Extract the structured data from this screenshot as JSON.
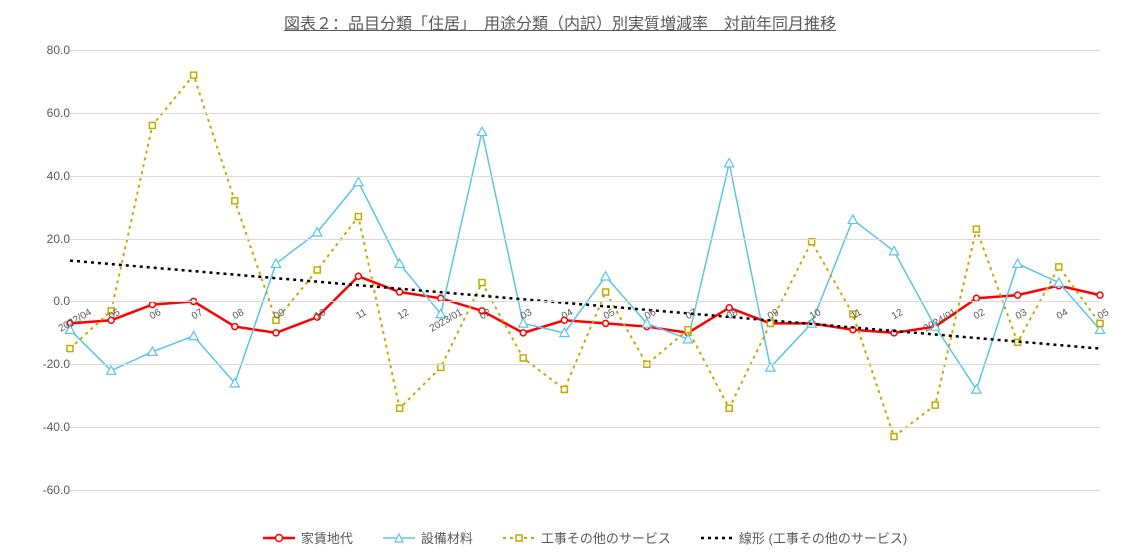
{
  "title": "図表２：品目分類「住居」　用途分類（内訳）別実質増減率　対前年同月推移",
  "chart": {
    "type": "line",
    "ylim": [
      -60,
      80
    ],
    "ytick_step": 20,
    "background_color": "#ffffff",
    "grid_color": "#d9d9d9",
    "title_fontsize": 16,
    "label_fontsize": 12,
    "x_labels": [
      "2022/04",
      "05",
      "06",
      "07",
      "08",
      "09",
      "10",
      "11",
      "12",
      "2023/01",
      "02",
      "03",
      "04",
      "05",
      "06",
      "07",
      "08",
      "09",
      "10",
      "11",
      "12",
      "2024/01",
      "02",
      "03",
      "04",
      "05"
    ],
    "series": [
      {
        "name": "家賃地代",
        "label": "家賃地代",
        "color": "#ff0000",
        "line_width": 2.5,
        "marker": "circle-open",
        "marker_size": 6,
        "dash": "solid",
        "values": [
          -7,
          -6,
          -1,
          0,
          -8,
          -10,
          -5,
          8,
          3,
          1,
          -3,
          -10,
          -6,
          -7,
          -8,
          -10,
          -2,
          -7,
          -7,
          -9,
          -10,
          -8,
          1,
          2,
          5,
          2
        ]
      },
      {
        "name": "設備材料",
        "label": "設備材料",
        "color": "#5bc5e8",
        "line_width": 1.5,
        "marker": "triangle-open",
        "marker_size": 7,
        "dash": "solid",
        "values": [
          -9,
          -22,
          -16,
          -11,
          -26,
          12,
          22,
          38,
          12,
          -4,
          54,
          -7,
          -10,
          8,
          -7,
          -12,
          44,
          -21,
          -7,
          26,
          16,
          -8,
          -28,
          12,
          6,
          -9
        ]
      },
      {
        "name": "工事その他のサービス",
        "label": "工事その他のサービス",
        "color": "#c5a900",
        "line_width": 2,
        "marker": "square-open",
        "marker_size": 6,
        "dash": "dot",
        "values": [
          -15,
          -3,
          56,
          72,
          32,
          -6,
          10,
          27,
          -34,
          -21,
          6,
          -18,
          -28,
          3,
          -20,
          -9,
          -34,
          -7,
          19,
          -4,
          -43,
          -33,
          23,
          -13,
          11,
          -7
        ]
      },
      {
        "name": "線形",
        "label": "線形 (工事その他のサービス)",
        "color": "#000000",
        "line_width": 2.5,
        "marker": "none",
        "dash": "dot",
        "trend_start": 13,
        "trend_end": -15
      }
    ],
    "legend_items": [
      "家賃地代",
      "設備材料",
      "工事その他のサービス",
      "線形 (工事その他のサービス)"
    ]
  }
}
